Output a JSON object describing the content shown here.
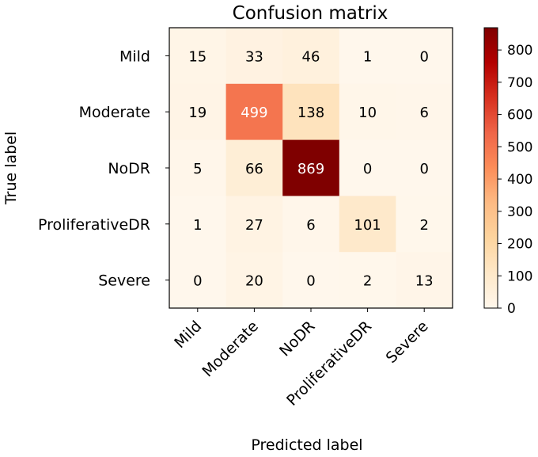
{
  "chart_data": {
    "type": "heatmap",
    "title": "Confusion matrix",
    "xlabel": "Predicted label",
    "ylabel": "True label",
    "x_categories": [
      "Mild",
      "Moderate",
      "NoDR",
      "ProliferativeDR",
      "Severe"
    ],
    "y_categories": [
      "Mild",
      "Moderate",
      "NoDR",
      "ProliferativeDR",
      "Severe"
    ],
    "values": [
      [
        15,
        33,
        46,
        1,
        0
      ],
      [
        19,
        499,
        138,
        10,
        6
      ],
      [
        5,
        66,
        869,
        0,
        0
      ],
      [
        1,
        27,
        6,
        101,
        2
      ],
      [
        0,
        20,
        0,
        2,
        13
      ]
    ],
    "colormap": "OrRd",
    "color_range": [
      0,
      869
    ],
    "colorbar_ticks": [
      0,
      100,
      200,
      300,
      400,
      500,
      600,
      700,
      800
    ],
    "colorbar_tick_labels": [
      "0",
      "100",
      "200",
      "300",
      "400",
      "500",
      "600",
      "700",
      "800"
    ],
    "x_tick_rotation_deg": 45,
    "grid": false,
    "colorbar_placement": "right"
  }
}
